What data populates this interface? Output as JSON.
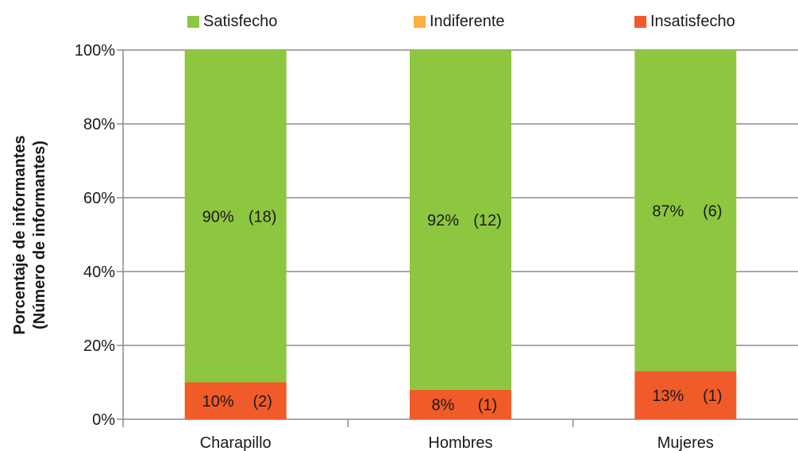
{
  "chart_data": {
    "type": "bar",
    "stacked": true,
    "percent": true,
    "ylabel_line1": "Porcentaje de informantes",
    "ylabel_line2": "(Número de informantes)",
    "categories": [
      "Charapillo",
      "Hombres",
      "Mujeres"
    ],
    "y_ticks": [
      "0%",
      "20%",
      "40%",
      "60%",
      "80%",
      "100%"
    ],
    "ylim": [
      0,
      100
    ],
    "grid": true,
    "legend_position": "top",
    "series": [
      {
        "name": "Satisfecho",
        "color": "#8dc63f",
        "values": [
          90,
          92,
          87
        ],
        "counts": [
          18,
          12,
          6
        ],
        "labels": [
          "90%",
          "92%",
          "87%"
        ],
        "count_labels": [
          "(18)",
          "(12)",
          "(6)"
        ]
      },
      {
        "name": "Indiferente",
        "color": "#fbb040",
        "values": [
          0,
          0,
          0
        ],
        "counts": [
          0,
          0,
          0
        ],
        "labels": [
          "",
          "",
          ""
        ],
        "count_labels": [
          "",
          "",
          ""
        ]
      },
      {
        "name": "Insatisfecho",
        "color": "#f15a29",
        "values": [
          10,
          8,
          13
        ],
        "counts": [
          2,
          1,
          1
        ],
        "labels": [
          "10%",
          "8%",
          "13%"
        ],
        "count_labels": [
          "(2)",
          "(1)",
          "(1)"
        ]
      }
    ]
  }
}
